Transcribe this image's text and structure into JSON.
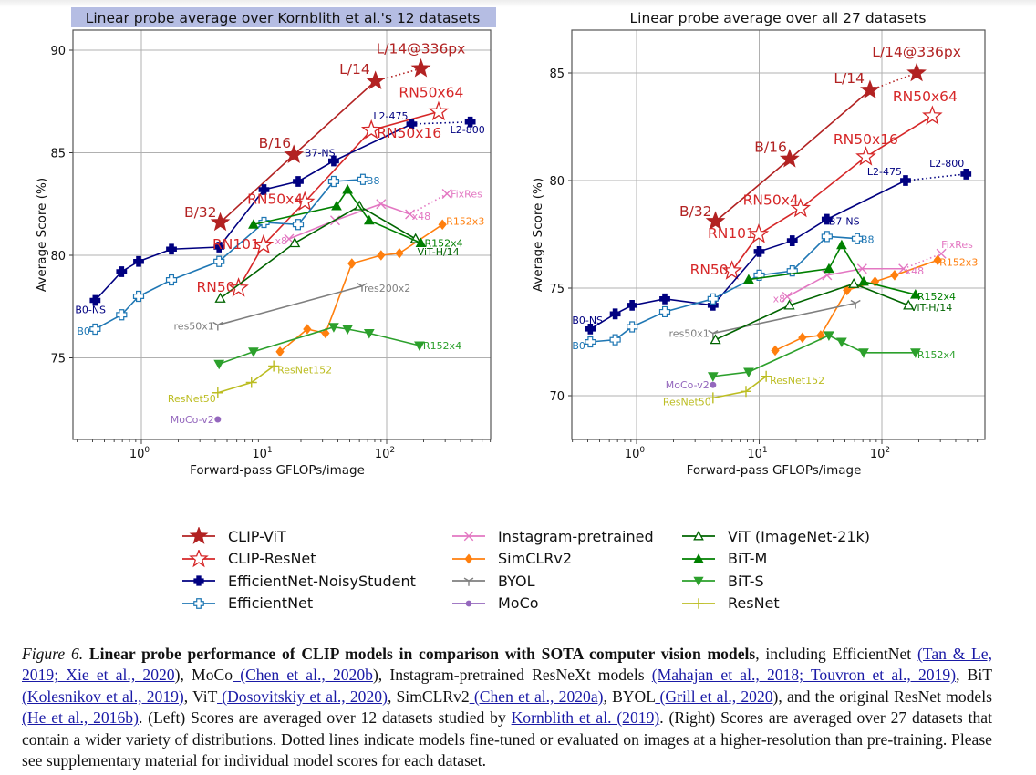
{
  "chart_data": [
    {
      "type": "line",
      "title": "Linear probe average over Kornblith et al.'s 12 datasets",
      "title_highlighted": true,
      "xlabel": "Forward-pass GFLOPs/image",
      "ylabel": "Average Score (%)",
      "xscale": "log",
      "xlim": [
        0.3,
        700
      ],
      "ylim": [
        71,
        91
      ],
      "xticks": [
        {
          "v": 1,
          "label": "10",
          "exp": "0"
        },
        {
          "v": 10,
          "label": "10",
          "exp": "1"
        },
        {
          "v": 100,
          "label": "10",
          "exp": "2"
        }
      ],
      "yticks": [
        75,
        80,
        85,
        90
      ],
      "grid": true,
      "series": [
        {
          "name": "CLIP-ViT",
          "points": [
            [
              4.4,
              81.6,
              "B/32"
            ],
            [
              17.5,
              84.9,
              "B/16"
            ],
            [
              81,
              88.5,
              "L/14"
            ]
          ],
          "dotted": [
            [
              81,
              88.5
            ],
            [
              190,
              89.1,
              "L/14@336px"
            ]
          ]
        },
        {
          "name": "CLIP-ResNet",
          "points": [
            [
              6.2,
              78.4,
              "RN50"
            ],
            [
              9.9,
              80.5,
              "RN101"
            ],
            [
              21.5,
              82.6,
              "RN50x4"
            ],
            [
              75,
              86.1,
              "RN50x16"
            ],
            [
              265,
              87.0,
              "RN50x64"
            ]
          ]
        },
        {
          "name": "EfficientNet-NoisyStudent",
          "points": [
            [
              0.42,
              77.8,
              "B0-NS"
            ],
            [
              0.69,
              79.2
            ],
            [
              0.95,
              79.7
            ],
            [
              1.76,
              80.3
            ],
            [
              4.3,
              80.4
            ],
            [
              10,
              83.2
            ],
            [
              19,
              83.6
            ],
            [
              37,
              84.6,
              "B7-NS"
            ],
            [
              160,
              86.4,
              "L2-475"
            ]
          ],
          "dotted": [
            [
              160,
              86.4
            ],
            [
              480,
              86.5,
              "L2-800"
            ]
          ]
        },
        {
          "name": "EfficientNet",
          "points": [
            [
              0.42,
              76.4,
              "B0"
            ],
            [
              0.69,
              77.1
            ],
            [
              0.95,
              78.0
            ],
            [
              1.76,
              78.8
            ],
            [
              4.3,
              79.7
            ],
            [
              10,
              81.6
            ],
            [
              19,
              81.5
            ],
            [
              37,
              83.6
            ],
            [
              64,
              83.7,
              "B8"
            ]
          ]
        },
        {
          "name": "Instagram-pretrained",
          "points": [
            [
              16,
              80.8,
              "x8"
            ],
            [
              38,
              81.7
            ],
            [
              90,
              82.5
            ],
            [
              155,
              82.0,
              "x48"
            ]
          ],
          "dotted": [
            [
              155,
              82.0
            ],
            [
              310,
              83.0,
              "FixRes"
            ]
          ]
        },
        {
          "name": "SimCLRv2",
          "points": [
            [
              13.5,
              75.3
            ],
            [
              22.5,
              76.4
            ],
            [
              31.7,
              76.2
            ],
            [
              52,
              79.6
            ],
            [
              90,
              80.0
            ],
            [
              127,
              80.1
            ],
            [
              285,
              81.5,
              "R152x3"
            ]
          ]
        },
        {
          "name": "BYOL",
          "points": [
            [
              4.2,
              76.6,
              "res50x1"
            ],
            [
              63,
              78.5,
              "res200x2"
            ]
          ]
        },
        {
          "name": "MoCo",
          "points": [
            [
              4.2,
              72.0,
              "MoCo-v2"
            ]
          ]
        },
        {
          "name": "ViT (ImageNet-21k)",
          "points": [
            [
              4.4,
              77.9
            ],
            [
              17.8,
              80.6
            ],
            [
              60,
              82.4
            ],
            [
              172,
              80.8,
              "ViT-H/14"
            ]
          ]
        },
        {
          "name": "BiT-M",
          "points": [
            [
              8.2,
              81.5
            ],
            [
              39,
              82.4
            ],
            [
              48,
              83.2
            ],
            [
              72,
              81.7
            ],
            [
              190,
              80.6,
              "R152x4"
            ]
          ]
        },
        {
          "name": "BiT-S",
          "points": [
            [
              4.3,
              74.7
            ],
            [
              8.2,
              75.3
            ],
            [
              37,
              76.5
            ],
            [
              48,
              76.4
            ],
            [
              72,
              76.2
            ],
            [
              185,
              75.6,
              "R152x4"
            ]
          ]
        },
        {
          "name": "ResNet",
          "points": [
            [
              4.2,
              73.3,
              "ResNet50"
            ],
            [
              7.9,
              73.8
            ],
            [
              12,
              74.6,
              "ResNet152"
            ]
          ]
        }
      ]
    },
    {
      "type": "line",
      "title": "Linear probe average over all 27 datasets",
      "title_highlighted": false,
      "xlabel": "Forward-pass GFLOPs/image",
      "ylabel": "Average Score (%)",
      "xscale": "log",
      "xlim": [
        0.3,
        700
      ],
      "ylim": [
        68,
        87
      ],
      "xticks": [
        {
          "v": 1,
          "label": "10",
          "exp": "0"
        },
        {
          "v": 10,
          "label": "10",
          "exp": "1"
        },
        {
          "v": 100,
          "label": "10",
          "exp": "2"
        }
      ],
      "yticks": [
        70,
        75,
        80,
        85
      ],
      "grid": true,
      "series": [
        {
          "name": "CLIP-ViT",
          "points": [
            [
              4.4,
              78.1,
              "B/32"
            ],
            [
              17.7,
              81.0,
              "B/16"
            ],
            [
              80,
              84.2,
              "L/14"
            ]
          ],
          "dotted": [
            [
              80,
              84.2
            ],
            [
              192,
              85.0,
              "L/14@336px"
            ]
          ]
        },
        {
          "name": "CLIP-ResNet",
          "points": [
            [
              6.0,
              75.8,
              "RN50"
            ],
            [
              9.9,
              77.5,
              "RN101"
            ],
            [
              21.7,
              78.7,
              "RN50x4"
            ],
            [
              74,
              81.1,
              "RN50x16"
            ],
            [
              258,
              83.0,
              "RN50x64"
            ]
          ]
        },
        {
          "name": "EfficientNet-NoisyStudent",
          "points": [
            [
              0.42,
              73.1,
              "B0-NS"
            ],
            [
              0.67,
              73.8
            ],
            [
              0.92,
              74.2
            ],
            [
              1.7,
              74.5
            ],
            [
              4.2,
              74.2
            ],
            [
              10,
              76.7
            ],
            [
              18.6,
              77.2
            ],
            [
              35.7,
              78.2,
              "B7-NS"
            ],
            [
              156,
              80.0,
              "L2-475"
            ]
          ],
          "dotted": [
            [
              156,
              80.0
            ],
            [
              485,
              80.3,
              "L2-800"
            ]
          ]
        },
        {
          "name": "EfficientNet",
          "points": [
            [
              0.42,
              72.5,
              "B0"
            ],
            [
              0.67,
              72.6
            ],
            [
              0.92,
              73.2
            ],
            [
              1.7,
              73.9
            ],
            [
              4.2,
              74.5
            ],
            [
              10,
              75.6
            ],
            [
              18.6,
              75.8
            ],
            [
              35.7,
              77.4
            ],
            [
              63,
              77.3,
              "B8"
            ]
          ]
        },
        {
          "name": "Instagram-pretrained",
          "points": [
            [
              16.9,
              74.6,
              "x8"
            ],
            [
              35.7,
              75.6
            ],
            [
              69,
              75.9
            ],
            [
              150,
              75.9,
              "x48"
            ]
          ],
          "dotted": [
            [
              150,
              75.9
            ],
            [
              305,
              76.6,
              "FixRes"
            ]
          ]
        },
        {
          "name": "SimCLRv2",
          "points": [
            [
              13.5,
              72.1
            ],
            [
              22.5,
              72.7
            ],
            [
              31.7,
              72.8
            ],
            [
              52,
              74.9
            ],
            [
              88,
              75.3
            ],
            [
              127,
              75.6
            ],
            [
              285,
              76.3,
              "R152x3"
            ]
          ]
        },
        {
          "name": "BYOL",
          "points": [
            [
              4.2,
              72.9,
              "res50x1"
            ],
            [
              61,
              74.3
            ]
          ]
        },
        {
          "name": "MoCo",
          "points": [
            [
              4.2,
              70.5,
              "MoCo-v2"
            ]
          ]
        },
        {
          "name": "ViT (ImageNet-21k)",
          "points": [
            [
              4.4,
              72.6
            ],
            [
              17.6,
              74.2
            ],
            [
              59,
              75.2
            ],
            [
              165,
              74.2,
              "ViT-H/14"
            ]
          ]
        },
        {
          "name": "BiT-M",
          "points": [
            [
              8.2,
              75.4
            ],
            [
              37,
              75.9
            ],
            [
              47,
              77.0
            ],
            [
              71,
              75.3
            ],
            [
              188,
              74.7,
              "R152x4"
            ]
          ]
        },
        {
          "name": "BiT-S",
          "points": [
            [
              4.2,
              70.9
            ],
            [
              8.2,
              71.1
            ],
            [
              37,
              72.8
            ],
            [
              47,
              72.5
            ],
            [
              71,
              72.0
            ],
            [
              188,
              72.0,
              "R152x4"
            ]
          ]
        },
        {
          "name": "ResNet",
          "points": [
            [
              4.2,
              69.9,
              "ResNet50"
            ],
            [
              7.8,
              70.2
            ],
            [
              11.4,
              70.9,
              "ResNet152"
            ]
          ]
        }
      ]
    }
  ],
  "styles": {
    "CLIP-ViT": {
      "color": "#b22222",
      "marker": "star-filled",
      "label_size": "large"
    },
    "CLIP-ResNet": {
      "color": "#d62728",
      "marker": "star-open",
      "label_size": "large"
    },
    "EfficientNet-NoisyStudent": {
      "color": "#000080",
      "marker": "plus-filled",
      "label_size": "small"
    },
    "EfficientNet": {
      "color": "#1f77b4",
      "marker": "plus-open",
      "label_size": "small"
    },
    "Instagram-pretrained": {
      "color": "#e377c2",
      "marker": "x",
      "label_size": "small"
    },
    "SimCLRv2": {
      "color": "#ff7f0e",
      "marker": "diamond",
      "label_size": "small"
    },
    "BYOL": {
      "color": "#7f7f7f",
      "marker": "tri-down",
      "label_size": "small"
    },
    "MoCo": {
      "color": "#9467bd",
      "marker": "dot",
      "label_size": "small"
    },
    "ViT (ImageNet-21k)": {
      "color": "#006400",
      "marker": "triangle-open",
      "label_size": "small"
    },
    "BiT-M": {
      "color": "#008000",
      "marker": "triangle-up",
      "label_size": "small"
    },
    "BiT-S": {
      "color": "#2ca02c",
      "marker": "triangle-down",
      "label_size": "small"
    },
    "ResNet": {
      "color": "#bcbd22",
      "marker": "plus-thin",
      "label_size": "small"
    }
  },
  "legend": {
    "placement": "bottom-center",
    "columns": [
      [
        "CLIP-ViT",
        "CLIP-ResNet",
        "EfficientNet-NoisyStudent",
        "EfficientNet"
      ],
      [
        "Instagram-pretrained",
        "SimCLRv2",
        "BYOL",
        "MoCo"
      ],
      [
        "ViT (ImageNet-21k)",
        "BiT-M",
        "BiT-S",
        "ResNet"
      ]
    ]
  },
  "caption": {
    "figure_label": "Figure 6.",
    "bold_title": "Linear probe performance of CLIP models in comparison with SOTA computer vision models",
    "segments": [
      {
        "t": ", including EfficientNet "
      },
      {
        "t": "(Tan & Le, 2019; Xie et al., 2020",
        "link": true
      },
      {
        "t": "), MoCo"
      },
      {
        "t": " (Chen et al., 2020b",
        "link": true
      },
      {
        "t": "), Instagram-pretrained ResNeXt models "
      },
      {
        "t": "(Mahajan et al., 2018; Touvron et al., 2019)",
        "link": true
      },
      {
        "t": ", BiT "
      },
      {
        "t": "(Kolesnikov et al., 2019)",
        "link": true
      },
      {
        "t": ", ViT"
      },
      {
        "t": " (Dosovitskiy et al., 2020)",
        "link": true
      },
      {
        "t": ", SimCLRv2"
      },
      {
        "t": " (Chen et al., 2020a)",
        "link": true
      },
      {
        "t": ", BYOL"
      },
      {
        "t": " (Grill et al., 2020",
        "link": true
      },
      {
        "t": "), and the original ResNet models "
      },
      {
        "t": "(He et al., 2016b)",
        "link": true
      },
      {
        "t": ". (Left) Scores are averaged over 12 datasets studied by "
      },
      {
        "t": "Kornblith et al. (2019)",
        "link": true
      },
      {
        "t": ". (Right) Scores are averaged over 27 datasets that contain a wider variety of distributions. Dotted lines indicate models fine-tuned or evaluated on images at a higher-resolution than pre-training. Please see supplementary material for individual model scores for each dataset."
      }
    ]
  }
}
